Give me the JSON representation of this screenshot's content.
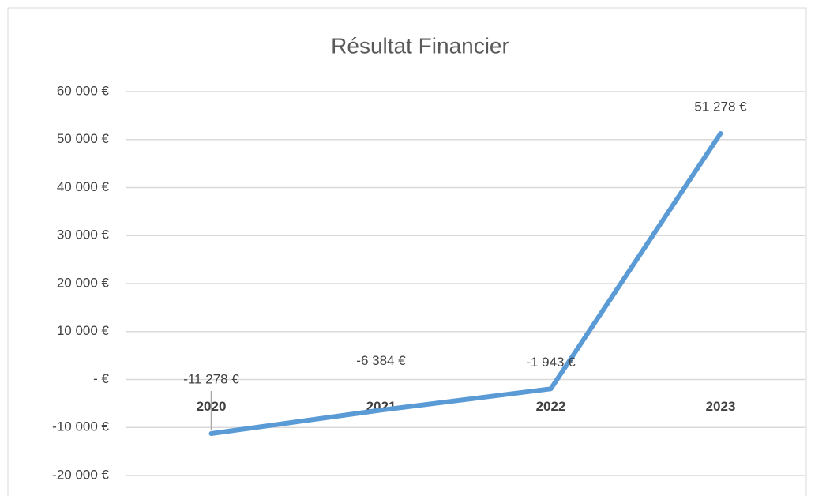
{
  "chart_data": {
    "type": "line",
    "title": "Résultat Financier",
    "categories": [
      "2020",
      "2021",
      "2022",
      "2023"
    ],
    "series": [
      {
        "name": "Résultat Financier",
        "color": "#5b9bd5",
        "values": [
          -11278,
          -6384,
          -1943,
          51278
        ],
        "value_labels": [
          "-11 278 €",
          "-6 384 €",
          "-1 943 €",
          "51 278 €"
        ]
      }
    ],
    "ylim": [
      -20000,
      60000
    ],
    "yticks": [
      {
        "value": -20000,
        "label": "-20 000 €"
      },
      {
        "value": -10000,
        "label": "-10 000 €"
      },
      {
        "value": 0,
        "label": "-   €"
      },
      {
        "value": 10000,
        "label": "10 000 €"
      },
      {
        "value": 20000,
        "label": "20 000 €"
      },
      {
        "value": 30000,
        "label": "30 000 €"
      },
      {
        "value": 40000,
        "label": "40 000 €"
      },
      {
        "value": 50000,
        "label": "50 000 €"
      },
      {
        "value": 60000,
        "label": "60 000 €"
      }
    ],
    "grid": true
  }
}
